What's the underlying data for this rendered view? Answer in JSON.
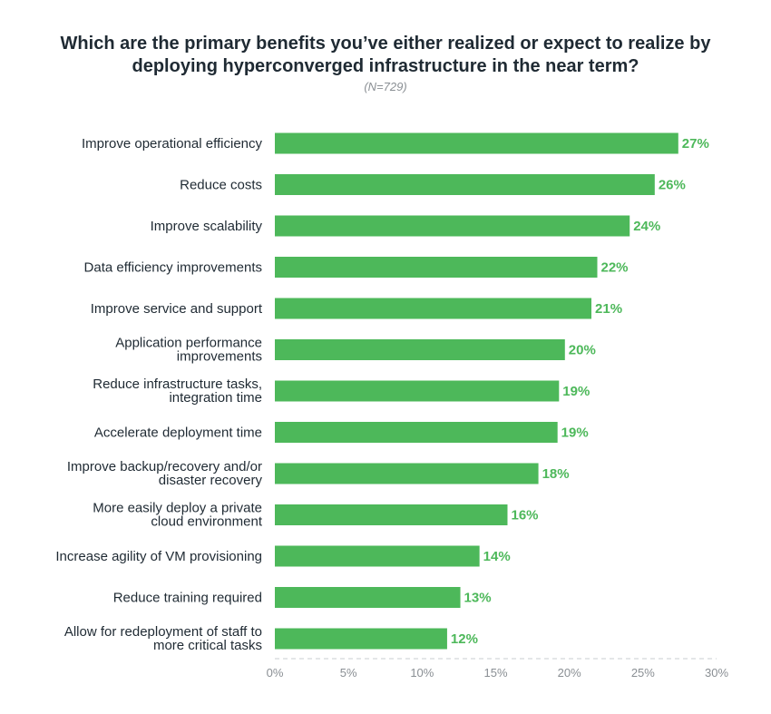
{
  "chart_data": {
    "type": "bar",
    "orientation": "horizontal",
    "title_lines": [
      "Which are the primary benefits you’ve either realized or expect to realize by",
      "deploying hyperconverged infrastructure in the near term?"
    ],
    "subtitle": "(N=729)",
    "categories": [
      [
        "Improve operational efficiency"
      ],
      [
        "Reduce costs"
      ],
      [
        "Improve scalability"
      ],
      [
        "Data efficiency improvements"
      ],
      [
        "Improve service and support"
      ],
      [
        "Application performance",
        "improvements"
      ],
      [
        "Reduce infrastructure tasks,",
        "integration time"
      ],
      [
        "Accelerate deployment time"
      ],
      [
        "Improve backup/recovery and/or",
        "disaster recovery"
      ],
      [
        "More easily deploy a private",
        "cloud environment"
      ],
      [
        "Increase agility of VM provisioning"
      ],
      [
        "Reduce training required"
      ],
      [
        "Allow for redeployment of staff to",
        "more critical tasks"
      ]
    ],
    "values": [
      27.4,
      25.8,
      24.1,
      21.9,
      21.5,
      19.7,
      19.3,
      19.2,
      17.9,
      15.8,
      13.9,
      12.6,
      11.7
    ],
    "value_labels": [
      "27%",
      "26%",
      "24%",
      "22%",
      "21%",
      "20%",
      "19%",
      "19%",
      "18%",
      "16%",
      "14%",
      "13%",
      "12%"
    ],
    "xlim": [
      0,
      30
    ],
    "xticks": [
      "0%",
      "5%",
      "10%",
      "15%",
      "20%",
      "25%",
      "30%"
    ],
    "bar_color": "#4db85a",
    "label_color": "#4db85a",
    "grid": false
  }
}
